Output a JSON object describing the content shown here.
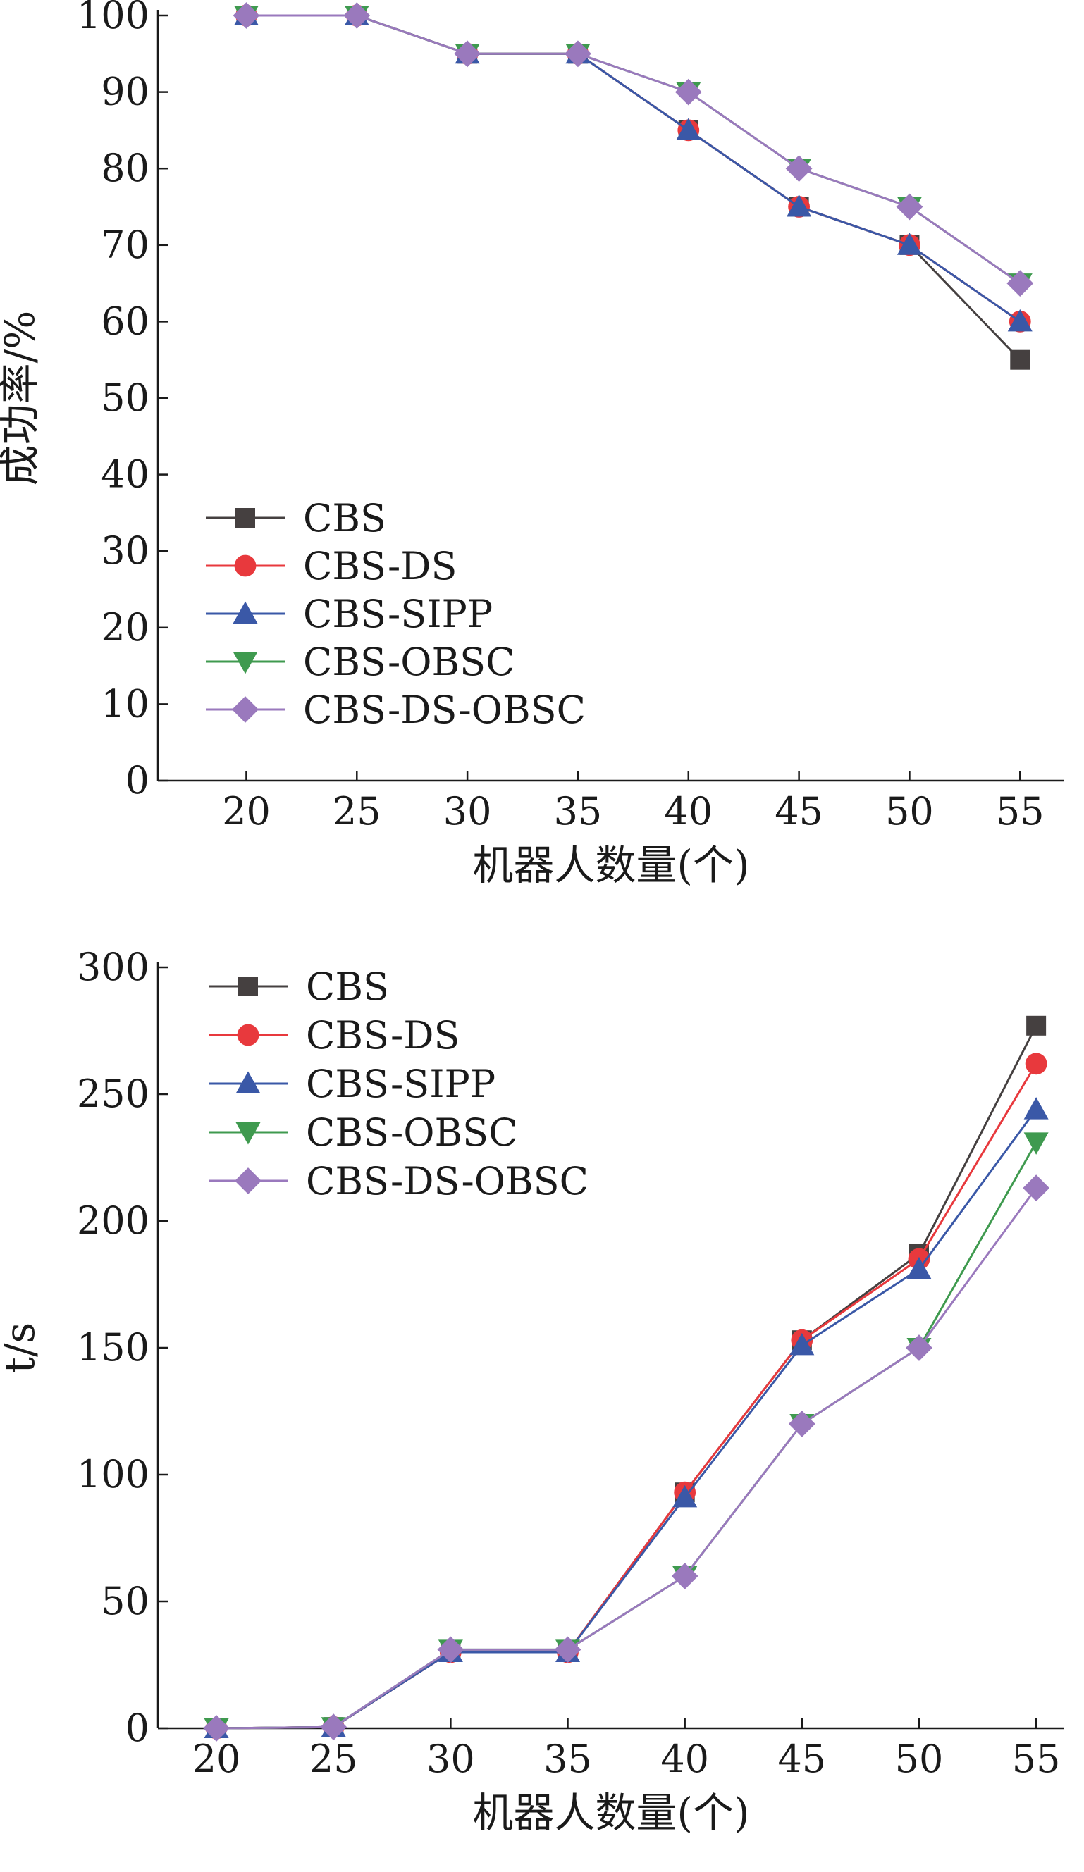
{
  "chart_data": [
    {
      "type": "line",
      "xlabel": "机器人数量(个)",
      "ylabel": "成功率/%",
      "x": [
        20,
        25,
        30,
        35,
        40,
        45,
        50,
        55
      ],
      "xlim": [
        16,
        57
      ],
      "ylim": [
        0,
        100
      ],
      "yticks": [
        0,
        10,
        20,
        30,
        40,
        50,
        60,
        70,
        80,
        90,
        100
      ],
      "grid": false,
      "legend_position": "center-left",
      "series": [
        {
          "name": "CBS",
          "marker": "square",
          "color": "#454040",
          "values": [
            100,
            100,
            95,
            95,
            85,
            75,
            70,
            55
          ]
        },
        {
          "name": "CBS-DS",
          "marker": "circle",
          "color": "#e8393d",
          "values": [
            100,
            100,
            95,
            95,
            85,
            75,
            70,
            60
          ]
        },
        {
          "name": "CBS-SIPP",
          "marker": "triangle-up",
          "color": "#3a58a7",
          "values": [
            100,
            100,
            95,
            95,
            85,
            75,
            70,
            60
          ]
        },
        {
          "name": "CBS-OBSC",
          "marker": "triangle-down",
          "color": "#3f9a4f",
          "values": [
            100,
            100,
            95,
            95,
            90,
            80,
            75,
            65
          ]
        },
        {
          "name": "CBS-DS-OBSC",
          "marker": "diamond",
          "color": "#9a79bd",
          "values": [
            100,
            100,
            95,
            95,
            90,
            80,
            75,
            65
          ]
        }
      ]
    },
    {
      "type": "line",
      "xlabel": "机器人数量(个)",
      "ylabel": "t/s",
      "x": [
        20,
        25,
        30,
        35,
        40,
        45,
        50,
        55
      ],
      "xlim": [
        17.5,
        56.2
      ],
      "ylim": [
        0,
        300
      ],
      "yticks": [
        0,
        50,
        100,
        150,
        200,
        250,
        300
      ],
      "grid": false,
      "legend_position": "top-left",
      "series": [
        {
          "name": "CBS",
          "marker": "square",
          "color": "#454040",
          "values": [
            0,
            0.5,
            30,
            30,
            93,
            153,
            187,
            277
          ]
        },
        {
          "name": "CBS-DS",
          "marker": "circle",
          "color": "#e8393d",
          "values": [
            0,
            0.5,
            30,
            30,
            93,
            153,
            185,
            262
          ]
        },
        {
          "name": "CBS-SIPP",
          "marker": "triangle-up",
          "color": "#3a58a7",
          "values": [
            0,
            0.5,
            30,
            30,
            91,
            151,
            181,
            244
          ]
        },
        {
          "name": "CBS-OBSC",
          "marker": "triangle-down",
          "color": "#3f9a4f",
          "values": [
            0,
            0.5,
            31,
            31,
            60,
            120,
            150,
            231
          ]
        },
        {
          "name": "CBS-DS-OBSC",
          "marker": "diamond",
          "color": "#9a79bd",
          "values": [
            0,
            0.5,
            31,
            31,
            60,
            120,
            150,
            213
          ]
        }
      ]
    }
  ]
}
